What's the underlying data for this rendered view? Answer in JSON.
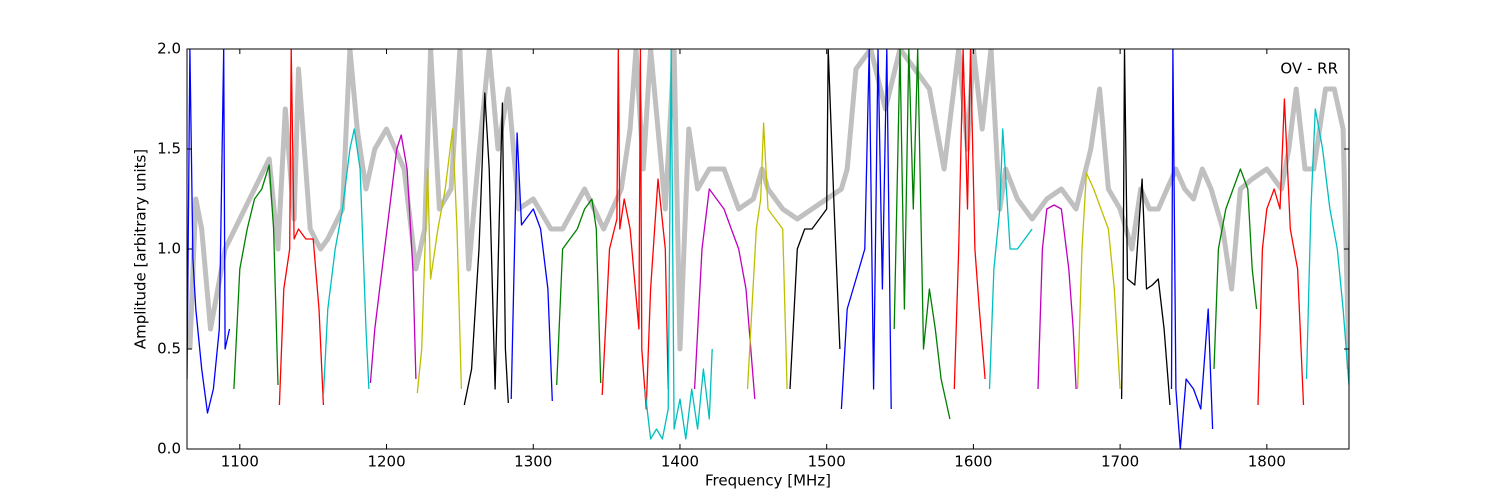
{
  "chart_data": {
    "type": "line",
    "annotation": "OV - RR",
    "xlabel": "Frequency [MHz]",
    "ylabel": "Amplitude [arbitrary units]",
    "xlim": [
      1064,
      1856
    ],
    "ylim": [
      0,
      2
    ],
    "xticks": [
      1100,
      1200,
      1300,
      1400,
      1500,
      1600,
      1700,
      1800
    ],
    "yticks": [
      {
        "value": 0,
        "label": "0.0"
      },
      0.5,
      {
        "value": 1,
        "label": "1.0"
      },
      1.5,
      {
        "value": 2,
        "label": "2.0"
      }
    ],
    "series": [
      {
        "color": "#c0c0c0",
        "x": [
          1066,
          1070,
          1074,
          1080,
          1090,
          1100,
          1110,
          1120,
          1126,
          1131,
          1137,
          1140,
          1148,
          1155,
          1160,
          1170,
          1175,
          1180,
          1186,
          1192,
          1200,
          1212,
          1220,
          1226,
          1230,
          1236,
          1244,
          1250,
          1256,
          1262,
          1270,
          1276,
          1283,
          1290,
          1300,
          1312,
          1320,
          1335,
          1348,
          1360,
          1366,
          1370,
          1375,
          1380,
          1385,
          1390,
          1396,
          1400,
          1406,
          1412,
          1420,
          1430,
          1440,
          1450,
          1456,
          1460,
          1470,
          1480,
          1490,
          1500,
          1510,
          1514,
          1520,
          1530,
          1540,
          1550,
          1560,
          1570,
          1580,
          1590,
          1596,
          1600,
          1606,
          1612,
          1618,
          1622,
          1630,
          1640,
          1650,
          1660,
          1670,
          1680,
          1686,
          1692,
          1700,
          1708,
          1714,
          1720,
          1726,
          1732,
          1738,
          1744,
          1750,
          1756,
          1762,
          1770,
          1776,
          1782,
          1790,
          1800,
          1810,
          1815,
          1820,
          1826,
          1832,
          1840,
          1846,
          1852,
          1856
        ],
        "values": [
          0.5,
          1.25,
          1.1,
          0.6,
          1.0,
          1.15,
          1.3,
          1.45,
          1.0,
          1.7,
          1.15,
          1.9,
          1.1,
          1.0,
          1.05,
          1.2,
          2.0,
          1.6,
          1.3,
          1.5,
          1.6,
          1.4,
          0.9,
          1.1,
          2.0,
          1.2,
          1.3,
          2.0,
          0.9,
          1.4,
          2.0,
          1.5,
          1.8,
          1.2,
          1.25,
          1.1,
          1.1,
          1.3,
          1.1,
          1.3,
          1.6,
          2.0,
          1.4,
          2.0,
          1.6,
          1.2,
          2.0,
          0.5,
          1.6,
          1.3,
          1.4,
          1.4,
          1.2,
          1.25,
          1.4,
          1.3,
          1.2,
          1.15,
          1.2,
          1.25,
          1.3,
          1.4,
          1.9,
          2.0,
          1.7,
          2.0,
          1.9,
          1.8,
          1.4,
          2.0,
          1.5,
          2.0,
          1.6,
          2.0,
          1.2,
          1.4,
          1.25,
          1.15,
          1.25,
          1.3,
          1.2,
          1.5,
          1.8,
          1.3,
          1.2,
          1.0,
          1.3,
          1.2,
          1.2,
          1.3,
          1.4,
          1.3,
          1.25,
          1.4,
          1.3,
          1.1,
          0.8,
          1.3,
          1.35,
          1.4,
          1.3,
          1.5,
          1.8,
          1.4,
          1.4,
          1.8,
          1.8,
          1.6,
          0.4
        ]
      },
      {
        "color": "#0000ff",
        "x": [
          1064,
          1066,
          1068,
          1070,
          1074,
          1078,
          1082,
          1086,
          1089,
          1090,
          1093
        ],
        "values": [
          0.35,
          2.0,
          0.95,
          0.7,
          0.4,
          0.18,
          0.3,
          0.6,
          2.0,
          0.5,
          0.6
        ]
      },
      {
        "color": "#008000",
        "x": [
          1096,
          1100,
          1105,
          1110,
          1115,
          1120,
          1123,
          1126
        ],
        "values": [
          0.3,
          0.9,
          1.1,
          1.25,
          1.3,
          1.42,
          1.1,
          0.32
        ]
      },
      {
        "color": "#ff0000",
        "x": [
          1127,
          1130,
          1134,
          1135,
          1137,
          1140,
          1145,
          1150,
          1154,
          1157
        ],
        "values": [
          0.22,
          0.8,
          1.0,
          2.0,
          1.05,
          1.1,
          1.05,
          1.05,
          0.7,
          0.22
        ]
      },
      {
        "color": "#00bfbf",
        "x": [
          1157,
          1160,
          1165,
          1170,
          1175,
          1178,
          1182,
          1186,
          1188
        ],
        "values": [
          0.27,
          0.7,
          1.0,
          1.2,
          1.5,
          1.6,
          1.4,
          0.6,
          0.3
        ]
      },
      {
        "color": "#bf00bf",
        "x": [
          1189,
          1192,
          1197,
          1202,
          1207,
          1210,
          1214,
          1218,
          1220
        ],
        "values": [
          0.33,
          0.6,
          0.9,
          1.2,
          1.5,
          1.57,
          1.4,
          0.9,
          0.35
        ]
      },
      {
        "color": "#bfbf00",
        "x": [
          1221,
          1224,
          1228,
          1230,
          1235,
          1240,
          1245,
          1248,
          1251
        ],
        "values": [
          0.28,
          0.5,
          1.4,
          0.85,
          1.1,
          1.3,
          1.6,
          1.1,
          0.3
        ]
      },
      {
        "color": "#000000",
        "x": [
          1253,
          1258,
          1263,
          1267,
          1270,
          1274,
          1277,
          1279,
          1281,
          1283
        ],
        "values": [
          0.22,
          0.4,
          1.0,
          1.78,
          1.4,
          0.3,
          1.2,
          1.73,
          0.5,
          0.23
        ]
      },
      {
        "color": "#0000ff",
        "x": [
          1285,
          1289,
          1292,
          1295,
          1300,
          1305,
          1310,
          1313
        ],
        "values": [
          0.25,
          1.58,
          1.12,
          1.15,
          1.2,
          1.1,
          0.8,
          0.24
        ]
      },
      {
        "color": "#008000",
        "x": [
          1316,
          1320,
          1325,
          1330,
          1335,
          1340,
          1343,
          1346
        ],
        "values": [
          0.32,
          1.0,
          1.05,
          1.1,
          1.2,
          1.25,
          1.1,
          0.33
        ]
      },
      {
        "color": "#ff0000",
        "x": [
          1347,
          1352,
          1357,
          1358,
          1359,
          1362,
          1366,
          1372,
          1373,
          1374,
          1377,
          1380,
          1385,
          1390,
          1392
        ],
        "values": [
          0.27,
          1.0,
          1.15,
          2.0,
          1.1,
          1.25,
          1.1,
          0.6,
          2.0,
          0.5,
          0.2,
          0.8,
          1.35,
          1.0,
          0.3
        ]
      },
      {
        "color": "#00bfbf",
        "x": [
          1376,
          1380,
          1384,
          1388,
          1392,
          1394,
          1396,
          1400,
          1404,
          1408,
          1412,
          1416,
          1420,
          1422
        ],
        "values": [
          0.3,
          0.05,
          0.1,
          0.05,
          0.2,
          2.0,
          0.1,
          0.25,
          0.05,
          0.3,
          0.1,
          0.4,
          0.15,
          0.5
        ]
      },
      {
        "color": "#bf00bf",
        "x": [
          1410,
          1415,
          1420,
          1425,
          1430,
          1435,
          1440,
          1445,
          1451
        ],
        "values": [
          0.3,
          1.0,
          1.3,
          1.25,
          1.2,
          1.1,
          1.0,
          0.8,
          0.25
        ]
      },
      {
        "color": "#bfbf00",
        "x": [
          1446,
          1452,
          1455,
          1457,
          1460,
          1465,
          1470,
          1473
        ],
        "values": [
          0.3,
          1.1,
          1.25,
          1.63,
          1.2,
          1.15,
          1.1,
          0.3
        ]
      },
      {
        "color": "#000000",
        "x": [
          1475,
          1480,
          1485,
          1490,
          1495,
          1500,
          1501,
          1505,
          1509
        ],
        "values": [
          0.3,
          1.0,
          1.1,
          1.1,
          1.15,
          1.2,
          2.0,
          1.22,
          0.5
        ]
      },
      {
        "color": "#0000ff",
        "x": [
          1510,
          1514,
          1518,
          1522,
          1526,
          1529,
          1532,
          1535,
          1538,
          1541,
          1544
        ],
        "values": [
          0.2,
          0.7,
          0.8,
          0.9,
          1.0,
          2.0,
          0.3,
          2.0,
          0.8,
          2.0,
          0.2
        ]
      },
      {
        "color": "#008000",
        "x": [
          1546,
          1550,
          1553,
          1556,
          1559,
          1562,
          1566,
          1570,
          1574,
          1578,
          1584
        ],
        "values": [
          0.6,
          2.0,
          0.7,
          2.0,
          1.2,
          2.0,
          0.5,
          0.8,
          0.6,
          0.35,
          0.15
        ]
      },
      {
        "color": "#ff0000",
        "x": [
          1587,
          1590,
          1593,
          1596,
          1598,
          1601,
          1604,
          1608
        ],
        "values": [
          0.3,
          1.0,
          2.0,
          1.2,
          2.0,
          1.0,
          0.7,
          0.35
        ]
      },
      {
        "color": "#00bfbf",
        "x": [
          1611,
          1614,
          1618,
          1620,
          1625,
          1630,
          1635,
          1640
        ],
        "values": [
          0.3,
          0.9,
          1.2,
          1.6,
          1.0,
          1.0,
          1.05,
          1.1
        ]
      },
      {
        "color": "#bf00bf",
        "x": [
          1644,
          1647,
          1650,
          1655,
          1660,
          1665,
          1668,
          1670
        ],
        "values": [
          0.3,
          1.0,
          1.2,
          1.22,
          1.2,
          0.9,
          0.6,
          0.3
        ]
      },
      {
        "color": "#bfbf00",
        "x": [
          1671,
          1674,
          1677,
          1682,
          1687,
          1692,
          1696,
          1700
        ],
        "values": [
          0.3,
          1.0,
          1.38,
          1.3,
          1.2,
          1.1,
          0.8,
          0.3
        ]
      },
      {
        "color": "#000000",
        "x": [
          1701,
          1702,
          1703,
          1705,
          1710,
          1715,
          1718,
          1722,
          1726,
          1730,
          1734
        ],
        "values": [
          0.25,
          0.8,
          2.0,
          0.85,
          0.82,
          1.35,
          0.8,
          0.82,
          0.85,
          0.6,
          0.22
        ]
      },
      {
        "color": "#0000ff",
        "x": [
          1735,
          1736,
          1738,
          1741,
          1745,
          1750,
          1755,
          1760,
          1763
        ],
        "values": [
          0.3,
          2.0,
          0.3,
          0.0,
          0.35,
          0.3,
          0.2,
          0.7,
          0.1
        ]
      },
      {
        "color": "#008000",
        "x": [
          1764,
          1767,
          1772,
          1777,
          1782,
          1787,
          1790,
          1793
        ],
        "values": [
          0.4,
          1.0,
          1.2,
          1.3,
          1.4,
          1.3,
          0.9,
          0.7
        ]
      },
      {
        "color": "#ff0000",
        "x": [
          1794,
          1797,
          1800,
          1805,
          1809,
          1812,
          1816,
          1821,
          1825
        ],
        "values": [
          0.22,
          1.0,
          1.2,
          1.3,
          1.2,
          1.75,
          1.1,
          0.9,
          0.22
        ]
      },
      {
        "color": "#00bfbf",
        "x": [
          1827,
          1830,
          1833,
          1838,
          1843,
          1848,
          1852,
          1856
        ],
        "values": [
          0.35,
          1.2,
          1.7,
          1.5,
          1.2,
          1.0,
          0.7,
          0.32
        ]
      }
    ]
  }
}
